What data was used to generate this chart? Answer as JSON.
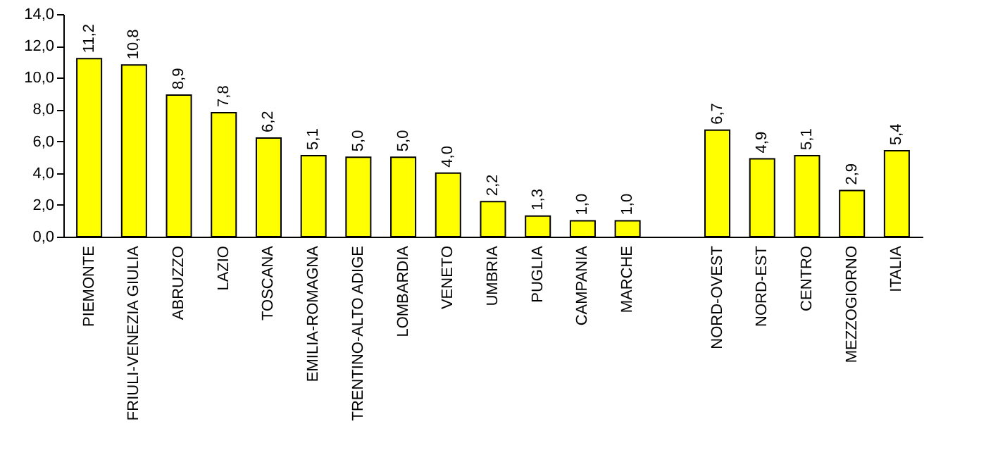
{
  "chart_data": {
    "type": "bar",
    "categories": [
      "PIEMONTE",
      "FRIULI-VENEZIA GIULIA",
      "ABRUZZO",
      "LAZIO",
      "TOSCANA",
      "EMILIA-ROMAGNA",
      "TRENTINO-ALTO ADIGE",
      "LOMBARDIA",
      "VENETO",
      "UMBRIA",
      "PUGLIA",
      "CAMPANIA",
      "MARCHE",
      null,
      "NORD-OVEST",
      "NORD-EST",
      "CENTRO",
      "MEZZOGIORNO",
      "ITALIA"
    ],
    "values": [
      11.2,
      10.8,
      8.9,
      7.8,
      6.2,
      5.1,
      5.0,
      5.0,
      4.0,
      2.2,
      1.3,
      1.0,
      1.0,
      null,
      6.7,
      4.9,
      5.1,
      2.9,
      5.4
    ],
    "value_labels": [
      "11,2",
      "10,8",
      "8,9",
      "7,8",
      "6,2",
      "5,1",
      "5,0",
      "5,0",
      "4,0",
      "2,2",
      "1,3",
      "1,0",
      "1,0",
      null,
      "6,7",
      "4,9",
      "5,1",
      "2,9",
      "5,4"
    ],
    "color": "#ffff00",
    "ylim": [
      0,
      14
    ],
    "yticks": [
      {
        "value": 0,
        "label": "0,0"
      },
      {
        "value": 2,
        "label": "2,0"
      },
      {
        "value": 4,
        "label": "4,0"
      },
      {
        "value": 6,
        "label": "6,0"
      },
      {
        "value": 8,
        "label": "8,0"
      },
      {
        "value": 10,
        "label": "10,0"
      },
      {
        "value": 12,
        "label": "12,0"
      },
      {
        "value": 14,
        "label": "14,0"
      }
    ],
    "grid": false
  }
}
